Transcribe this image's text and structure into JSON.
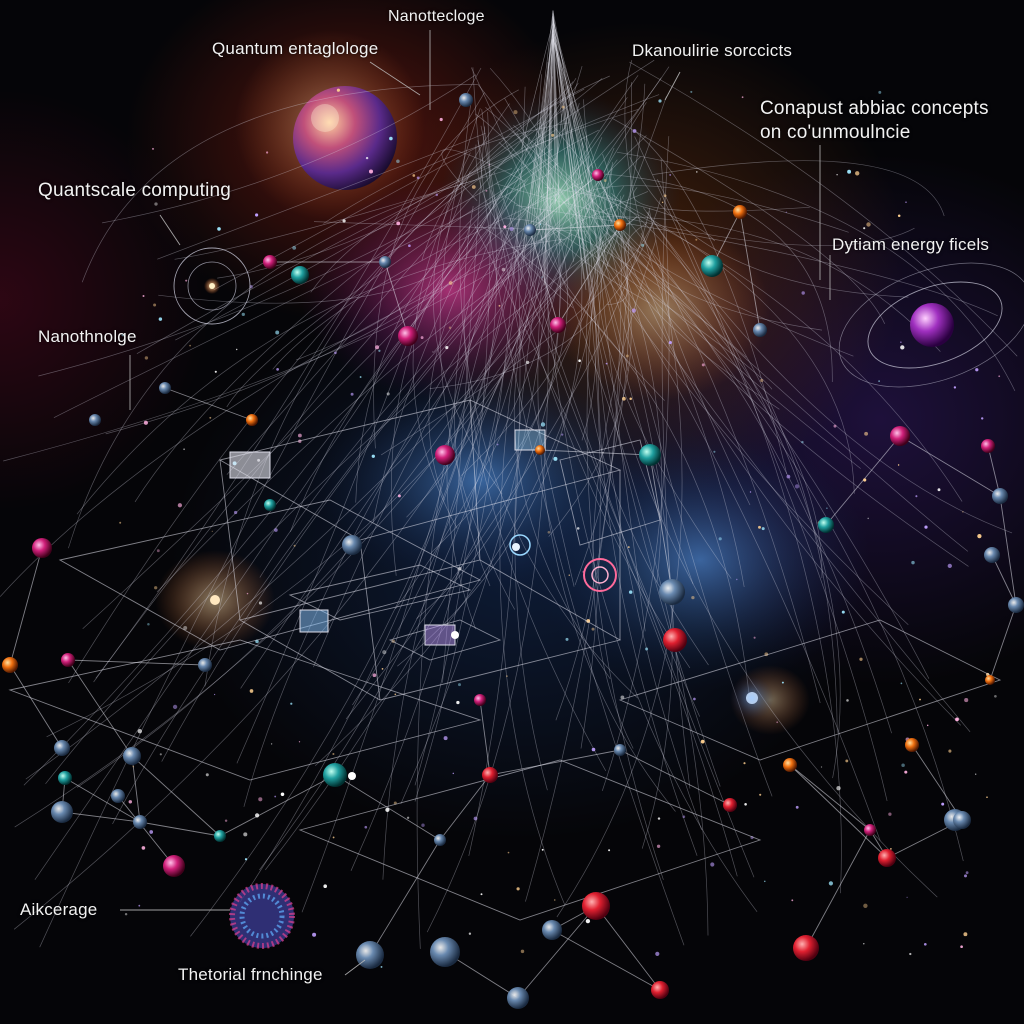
{
  "labels": {
    "nano_top": "Nanottecloge",
    "quantum_ent": "Quantum entaglologe",
    "dkanou": "Dkanoulirie sorccicts",
    "conapust_1": "Conapust abbiac concepts",
    "conapust_2": "on co'unmoulncie",
    "quantscale": "Quantscale computing",
    "dytiam": "Dytiam energy ficels",
    "nanothnolo": "Nanothnolge",
    "aikcerage": "Aikcerage",
    "thetorial": "Thetorial frnchinge"
  },
  "colors": {
    "background": "#050508",
    "label_text": "#f2f2f2",
    "leader_line": "#bdbdbd"
  }
}
